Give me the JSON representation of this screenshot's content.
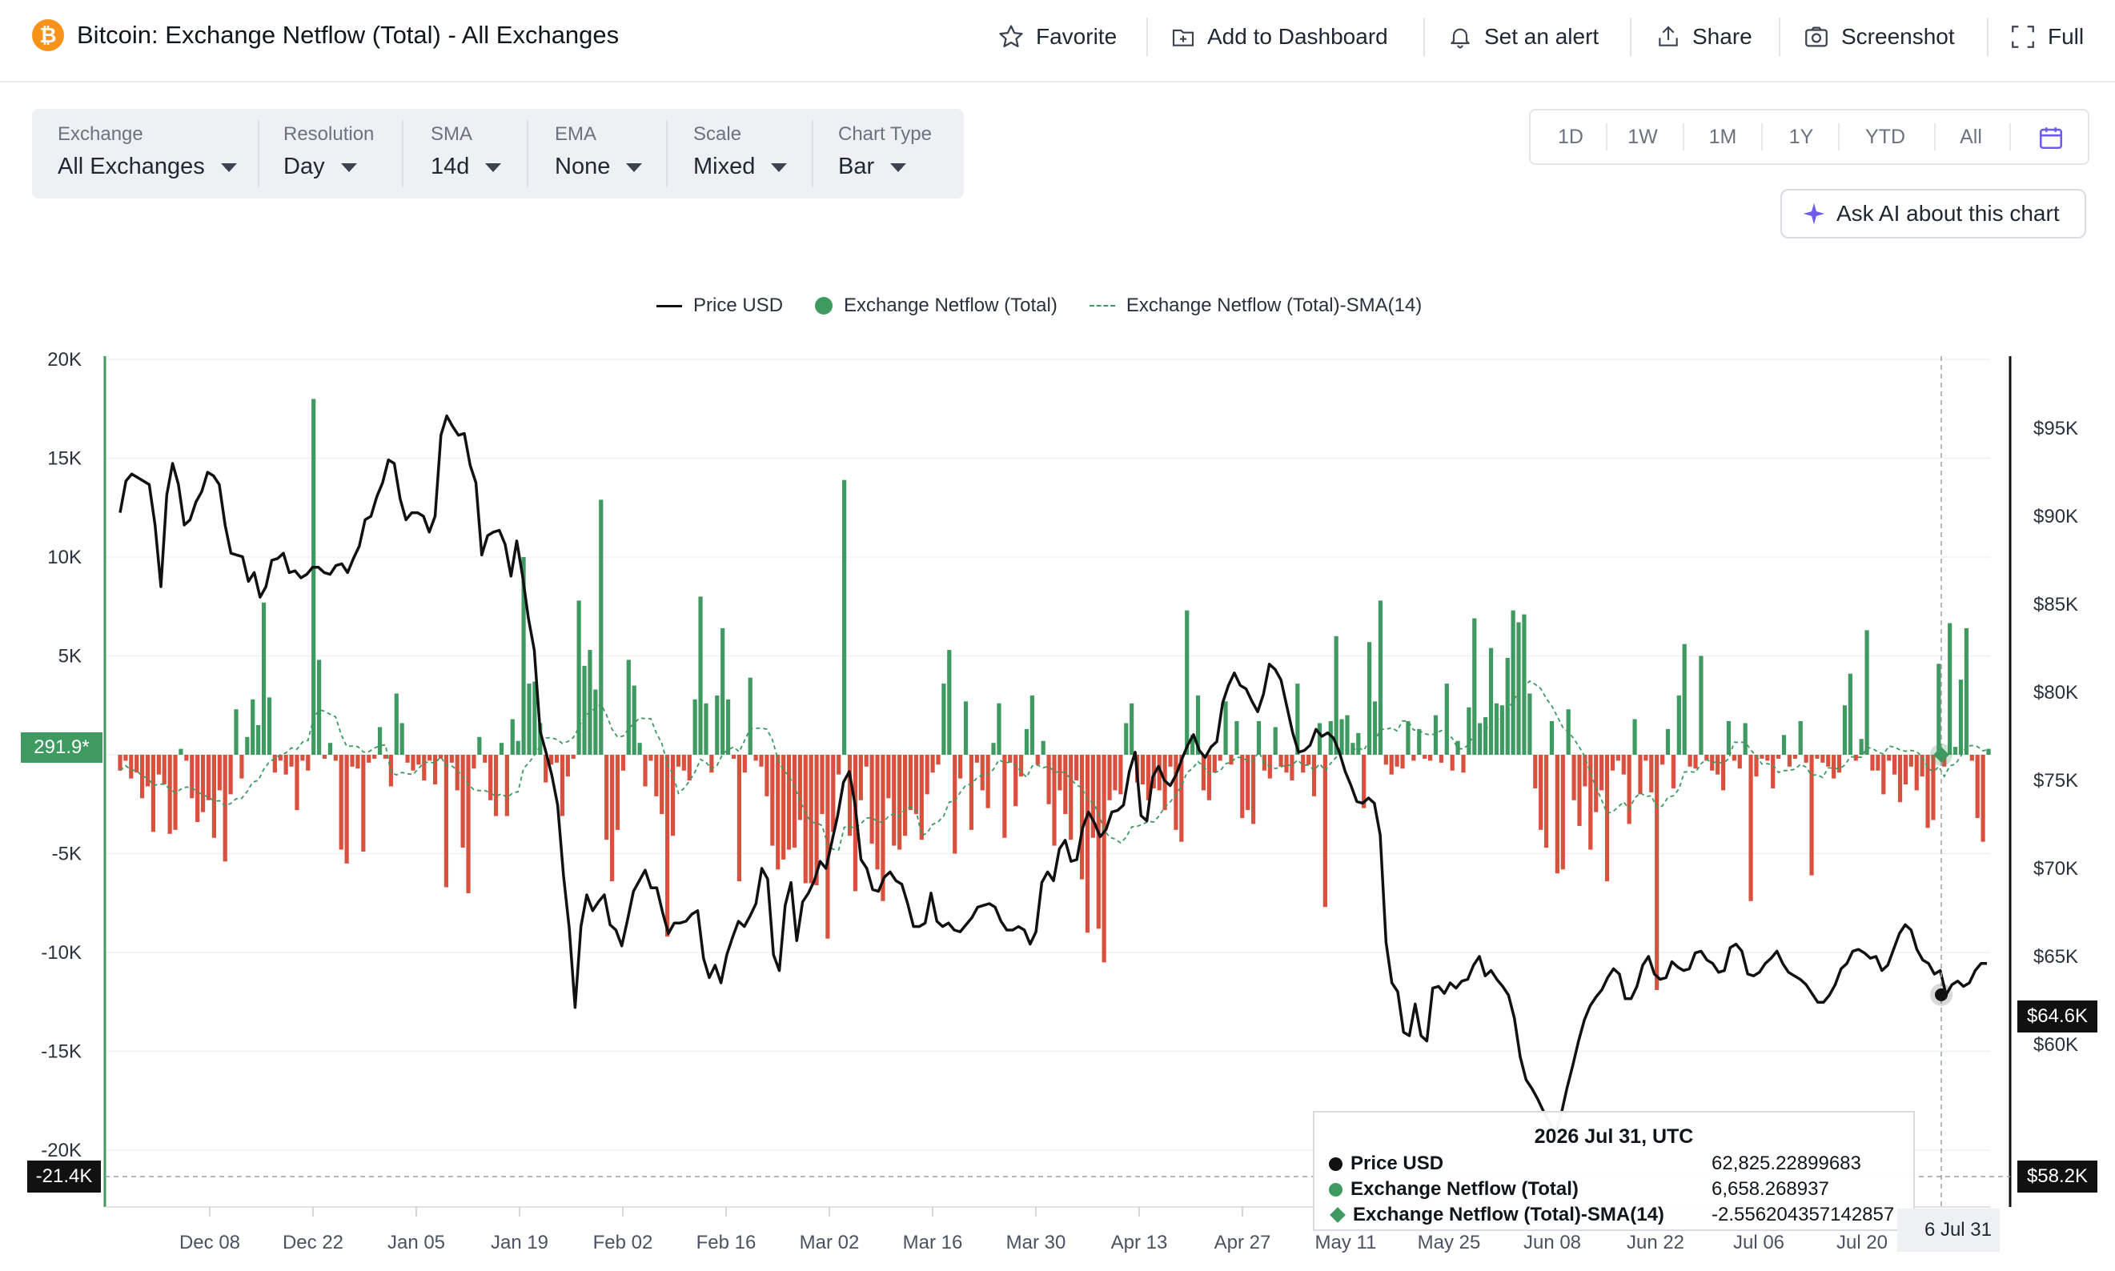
{
  "header": {
    "logo_glyph": "₿",
    "title": "Bitcoin: Exchange Netflow (Total) - All Exchanges",
    "actions": [
      {
        "name": "favorite",
        "label": "Favorite",
        "icon": "star-icon"
      },
      {
        "name": "add-to-dashboard",
        "label": "Add to Dashboard",
        "icon": "dashboard-plus-icon"
      },
      {
        "name": "set-alert",
        "label": "Set an alert",
        "icon": "bell-icon"
      },
      {
        "name": "share",
        "label": "Share",
        "icon": "share-icon"
      },
      {
        "name": "screenshot",
        "label": "Screenshot",
        "icon": "camera-icon"
      },
      {
        "name": "fullscreen",
        "label": "Full",
        "icon": "fullscreen-icon"
      }
    ]
  },
  "filters": [
    {
      "name": "exchange",
      "label": "Exchange",
      "value": "All Exchanges"
    },
    {
      "name": "resolution",
      "label": "Resolution",
      "value": "Day"
    },
    {
      "name": "sma",
      "label": "SMA",
      "value": "14d"
    },
    {
      "name": "ema",
      "label": "EMA",
      "value": "None"
    },
    {
      "name": "scale",
      "label": "Scale",
      "value": "Mixed"
    },
    {
      "name": "chart-type",
      "label": "Chart Type",
      "value": "Bar"
    }
  ],
  "range": [
    "1D",
    "1W",
    "1M",
    "1Y",
    "YTD",
    "All"
  ],
  "ask_ai": {
    "label": "Ask AI about this chart"
  },
  "legend": {
    "price": "Price USD",
    "netflow": "Exchange Netflow (Total)",
    "sma": "Exchange Netflow (Total)-SMA(14)"
  },
  "colors": {
    "inflow": "#3e9a61",
    "outflow": "#d9503f",
    "price": "#111111",
    "sma": "#3e9a61",
    "icon_accent": "#6c5ce7"
  },
  "badges": {
    "left_current": "291.9*",
    "left_min": "-21.4K",
    "right_price": "$64.6K",
    "right_min": "$58.2K",
    "cursor_date": "6 Jul 31"
  },
  "tooltip": {
    "title": "2026 Jul 31, UTC",
    "rows": [
      {
        "name": "price",
        "label": "Price USD",
        "value": "62,825.22899683"
      },
      {
        "name": "netflow",
        "label": "Exchange Netflow (Total)",
        "value": "6,658.268937"
      },
      {
        "name": "sma",
        "label": "Exchange Netflow (Total)-SMA(14)",
        "value": "-2.556204357142857"
      }
    ]
  },
  "chart_data": {
    "type": "bar",
    "title": "Bitcoin: Exchange Netflow (Total) - All Exchanges",
    "legend_placement": "top-center",
    "grid": true,
    "left_axis": {
      "ticks": [
        "20K",
        "15K",
        "10K",
        "5K",
        "",
        "-5K",
        "-10K",
        "-15K",
        "-20K"
      ],
      "ylim": [
        -21400,
        20000
      ]
    },
    "right_axis": {
      "ticks": [
        "$95K",
        "$90K",
        "$85K",
        "$80K",
        "$75K",
        "$70K",
        "$65K",
        "$60K"
      ],
      "ylim": [
        57500,
        98500
      ]
    },
    "x_ticks": [
      "Dec 08",
      "Dec 22",
      "Jan 05",
      "Jan 19",
      "Feb 02",
      "Feb 16",
      "Mar 02",
      "Mar 16",
      "Mar 30",
      "Apr 13",
      "Apr 27",
      "May 11",
      "May 25",
      "Jun 08",
      "Jun 22",
      "Jul 06",
      "Jul 20"
    ],
    "netflow": [
      -800,
      -300,
      -1200,
      -900,
      -2200,
      -1600,
      -3900,
      -1000,
      -1500,
      -4000,
      -3800,
      300,
      -300,
      -2200,
      -3400,
      -2900,
      -2300,
      -4200,
      -1800,
      -5400,
      -2000,
      2300,
      -1200,
      900,
      2800,
      1500,
      7700,
      2900,
      -900,
      -300,
      -1000,
      -600,
      -2800,
      -300,
      -800,
      18000,
      4800,
      -200,
      600,
      -300,
      -4800,
      -5500,
      -600,
      -700,
      -4900,
      -400,
      -200,
      1400,
      -200,
      -1600,
      3100,
      1600,
      -400,
      -800,
      -500,
      -1300,
      -300,
      -1500,
      -200,
      -6700,
      -400,
      -1800,
      -4700,
      -7000,
      -700,
      900,
      -400,
      -2300,
      -3100,
      600,
      -3100,
      1800,
      700,
      10000,
      3600,
      3700,
      1600,
      -1400,
      -500,
      -400,
      -3100,
      -1100,
      -200,
      7800,
      4500,
      5300,
      3300,
      12900,
      -4300,
      -6400,
      -3800,
      -800,
      4800,
      3500,
      600,
      -1600,
      -300,
      -2100,
      -3000,
      -9200,
      -4100,
      -600,
      -800,
      -1300,
      2800,
      8000,
      2600,
      -900,
      3000,
      6400,
      2800,
      -200,
      -6400,
      -900,
      3900,
      -300,
      -600,
      -2100,
      -4600,
      -5800,
      -5300,
      -4800,
      -4700,
      -3300,
      -6500,
      -6500,
      -6600,
      -3000,
      -9300,
      -3900,
      -1000,
      13900,
      -4100,
      -6900,
      -2300,
      -600,
      -4500,
      -5800,
      -7400,
      -2200,
      -4600,
      -4800,
      -4100,
      -2800,
      -3000,
      -4300,
      -2000,
      -900,
      -500,
      3600,
      5300,
      -5000,
      -1200,
      2700,
      -3800,
      -400,
      -1800,
      -2700,
      600,
      2600,
      -4200,
      -400,
      -2600,
      -1100,
      1300,
      3000,
      -500,
      700,
      -2500,
      -4600,
      -1800,
      -3000,
      -4300,
      -1300,
      -6300,
      -9000,
      -4200,
      -8800,
      -10500,
      -2300,
      -1800,
      -2000,
      1600,
      2600,
      -1400,
      -1500,
      -2300,
      -1700,
      -1800,
      -2800,
      -600,
      -3800,
      -4400,
      7300,
      1000,
      3000,
      -1800,
      -2300,
      -900,
      -300,
      2700,
      -500,
      1700,
      -3200,
      -2800,
      -3500,
      1700,
      -800,
      -1200,
      1400,
      -600,
      -900,
      -1300,
      3600,
      -900,
      -500,
      -2100,
      1600,
      -7700,
      1700,
      6000,
      1800,
      2000,
      600,
      1100,
      -2700,
      5700,
      2700,
      7800,
      -500,
      -1000,
      -600,
      -700,
      1700,
      -300,
      1300,
      -200,
      -300,
      2000,
      -400,
      3600,
      -800,
      700,
      -900,
      2400,
      6900,
      1600,
      1900,
      5400,
      2600,
      2500,
      4900,
      7300,
      6700,
      7100,
      3100,
      -1700,
      -3800,
      -4700,
      1700,
      -6000,
      -5800,
      2300,
      -2300,
      -3600,
      -1600,
      -4800,
      -2900,
      -1800,
      -6400,
      -800,
      -300,
      -1000,
      -3500,
      1800,
      -2000,
      -300,
      -1900,
      -11900,
      -500,
      1300,
      -1700,
      3000,
      5600,
      -600,
      -700,
      5000,
      -300,
      -800,
      -1000,
      -1800,
      1700,
      -300,
      -700,
      1600,
      -7400,
      -1100,
      -200,
      -300,
      -1700,
      -200,
      1000,
      -600,
      -200,
      1700,
      -400,
      -6100,
      -200,
      -400,
      -600,
      -1200,
      -900,
      2500,
      4100,
      -300,
      800,
      6300,
      -800,
      -800,
      -2000,
      -300,
      -1000,
      -2400,
      -1500,
      -600,
      -1800,
      -1100,
      -3700,
      -3300,
      4600,
      -600,
      6658,
      400,
      3800,
      6400,
      -300,
      -3200,
      -4400,
      300
    ],
    "price": [
      90200,
      92000,
      92400,
      92200,
      92000,
      91800,
      89500,
      86000,
      91200,
      93000,
      91800,
      89500,
      89800,
      90800,
      91400,
      92500,
      92300,
      91800,
      89500,
      87900,
      87800,
      87700,
      86300,
      86800,
      85400,
      86000,
      87500,
      87600,
      87900,
      86800,
      86900,
      86500,
      86700,
      87100,
      87100,
      86800,
      86700,
      87200,
      87300,
      86800,
      87600,
      88300,
      89800,
      90000,
      91100,
      91900,
      93200,
      93000,
      91000,
      89800,
      90200,
      90200,
      90000,
      89100,
      90000,
      94600,
      95700,
      95100,
      94600,
      94700,
      92900,
      91900,
      87800,
      88900,
      89100,
      89200,
      88400,
      86600,
      88600,
      86600,
      84200,
      82400,
      77800,
      76600,
      75300,
      73600,
      69600,
      66600,
      62100,
      66700,
      68500,
      67600,
      68100,
      68500,
      66800,
      66500,
      65600,
      67100,
      68700,
      69300,
      69900,
      68900,
      68900,
      67500,
      66300,
      66900,
      66900,
      67000,
      67400,
      67600,
      64900,
      63800,
      64500,
      63500,
      65100,
      66100,
      67000,
      66700,
      67300,
      68000,
      70000,
      69400,
      65100,
      64200,
      67900,
      69200,
      65900,
      68100,
      68600,
      69300,
      70400,
      70000,
      71500,
      73000,
      74900,
      75500,
      73600,
      70500,
      70000,
      68800,
      68700,
      69500,
      69800,
      69300,
      69100,
      68000,
      66700,
      66700,
      66900,
      68600,
      67000,
      66700,
      66900,
      66500,
      66400,
      66800,
      67200,
      67800,
      67900,
      68000,
      67800,
      67000,
      66500,
      66500,
      66700,
      66500,
      65700,
      66400,
      69200,
      69800,
      69300,
      71100,
      71600,
      70400,
      70500,
      72300,
      73200,
      72600,
      71800,
      72200,
      73200,
      73300,
      73600,
      75500,
      76600,
      73000,
      72700,
      75200,
      75800,
      75000,
      74700,
      75300,
      76200,
      77000,
      77600,
      76700,
      76300,
      76900,
      77200,
      79400,
      80400,
      81100,
      80400,
      80200,
      79500,
      78900,
      79900,
      81600,
      81300,
      80700,
      79200,
      77700,
      76600,
      76700,
      77000,
      77900,
      77500,
      77700,
      77400,
      76600,
      75500,
      74700,
      73800,
      73700,
      74000,
      73700,
      71900,
      65800,
      63500,
      63000,
      60700,
      60500,
      62300,
      60500,
      60200,
      63200,
      63300,
      62900,
      63500,
      63200,
      63600,
      63700,
      64500,
      65000,
      63900,
      64200,
      63700,
      63300,
      62800,
      61500,
      59300,
      58000,
      57500,
      56900,
      56200,
      55600,
      55000,
      56000,
      57500,
      58800,
      60200,
      61400,
      62200,
      62700,
      63100,
      63800,
      64300,
      64000,
      62600,
      62600,
      63300,
      64500,
      65000,
      64000,
      63700,
      63800,
      64700,
      64400,
      64200,
      64300,
      65200,
      65300,
      64800,
      64600,
      64100,
      64200,
      65500,
      65700,
      65300,
      64000,
      63900,
      64100,
      64600,
      64900,
      65300,
      64600,
      64100,
      63900,
      63700,
      63400,
      62900,
      62400,
      62400,
      62800,
      63400,
      64300,
      64600,
      65300,
      65400,
      65200,
      64900,
      65000,
      64200,
      64500,
      65400,
      66300,
      66800,
      66500,
      65400,
      64800,
      64600,
      64000,
      64200,
      62825,
      63400,
      63600,
      63300,
      63500,
      64200,
      64600,
      64600
    ]
  }
}
